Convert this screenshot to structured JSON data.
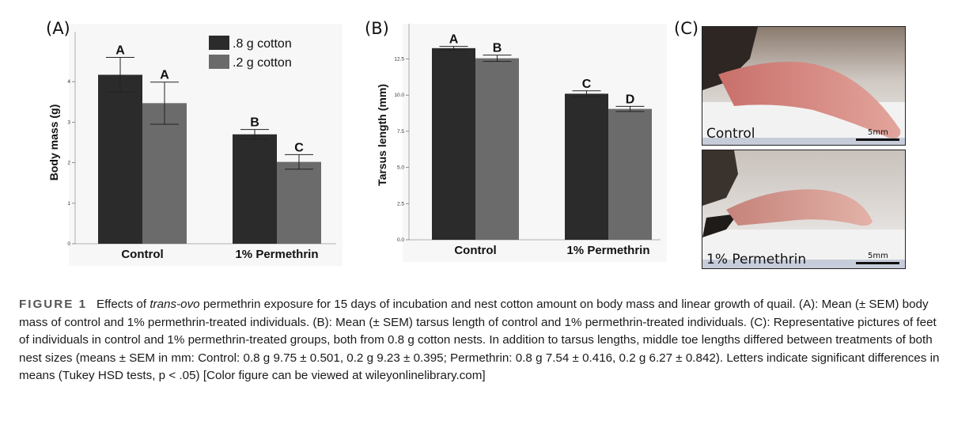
{
  "panels": {
    "a_label": "(A)",
    "b_label": "(B)",
    "c_label": "(C)"
  },
  "chart_data": [
    {
      "type": "bar",
      "panel": "(A)",
      "ylabel": "Body mass (g)",
      "xlabel": "",
      "categories": [
        "Control",
        "1% Permethrin"
      ],
      "yticks": [
        "0",
        "1",
        "2",
        "3",
        "4"
      ],
      "ylim": [
        0,
        5.0
      ],
      "grid": false,
      "legend_position": "top-right",
      "series": [
        {
          "name": ".8 g cotton",
          "values": [
            4.17,
            2.7
          ],
          "errors": [
            0.43,
            0.12
          ],
          "letters": [
            "A",
            "B"
          ],
          "color": "#2b2b2b"
        },
        {
          "name": ".2 g cotton",
          "values": [
            3.47,
            2.02
          ],
          "errors": [
            0.52,
            0.18
          ],
          "letters": [
            "A",
            "C"
          ],
          "color": "#6b6b6b"
        }
      ]
    },
    {
      "type": "bar",
      "panel": "(B)",
      "ylabel": "Tarsus length (mm)",
      "xlabel": "",
      "categories": [
        "Control",
        "1% Permethrin"
      ],
      "yticks": [
        "0.0",
        "2.5",
        "5.0",
        "7.5",
        "10.0",
        "12.5"
      ],
      "ylim": [
        0,
        14.5
      ],
      "grid": false,
      "series": [
        {
          "name": ".8 g cotton",
          "values": [
            13.25,
            10.1
          ],
          "errors": [
            0.12,
            0.2
          ],
          "letters": [
            "A",
            "C"
          ],
          "color": "#2b2b2b"
        },
        {
          "name": ".2 g cotton",
          "values": [
            12.55,
            9.05
          ],
          "errors": [
            0.22,
            0.18
          ],
          "letters": [
            "B",
            "D"
          ],
          "color": "#6b6b6b"
        }
      ]
    }
  ],
  "photos": {
    "top_caption": "Control",
    "bottom_caption": "1% Permethrin",
    "scale_label": "5mm"
  },
  "caption": {
    "figure_label": "FIGURE 1",
    "text_1": "Effects of ",
    "italic": "trans-ovo",
    "text_2": " permethrin exposure for 15 days of incubation and nest cotton amount on body mass and linear growth of quail. (A): Mean (± SEM) body mass of control and 1% permethrin-treated individuals. (B): Mean (± SEM) tarsus length of control and 1% permethrin-treated individuals. (C): Representative pictures of feet of individuals in control and 1% permethrin-treated groups, both from 0.8 g cotton nests. In addition to tarsus lengths, middle toe lengths differed between treatments of both nest sizes (means ± SEM in mm: Control: 0.8 g 9.75 ± 0.501, 0.2 g 9.23 ± 0.395; Permethrin: 0.8 g 7.54 ± 0.416, 0.2 g 6.27 ± 0.842). Letters indicate significant differences in means (Tukey HSD tests, p < .05) [Color figure can be viewed at wileyonlinelibrary.com]"
  }
}
